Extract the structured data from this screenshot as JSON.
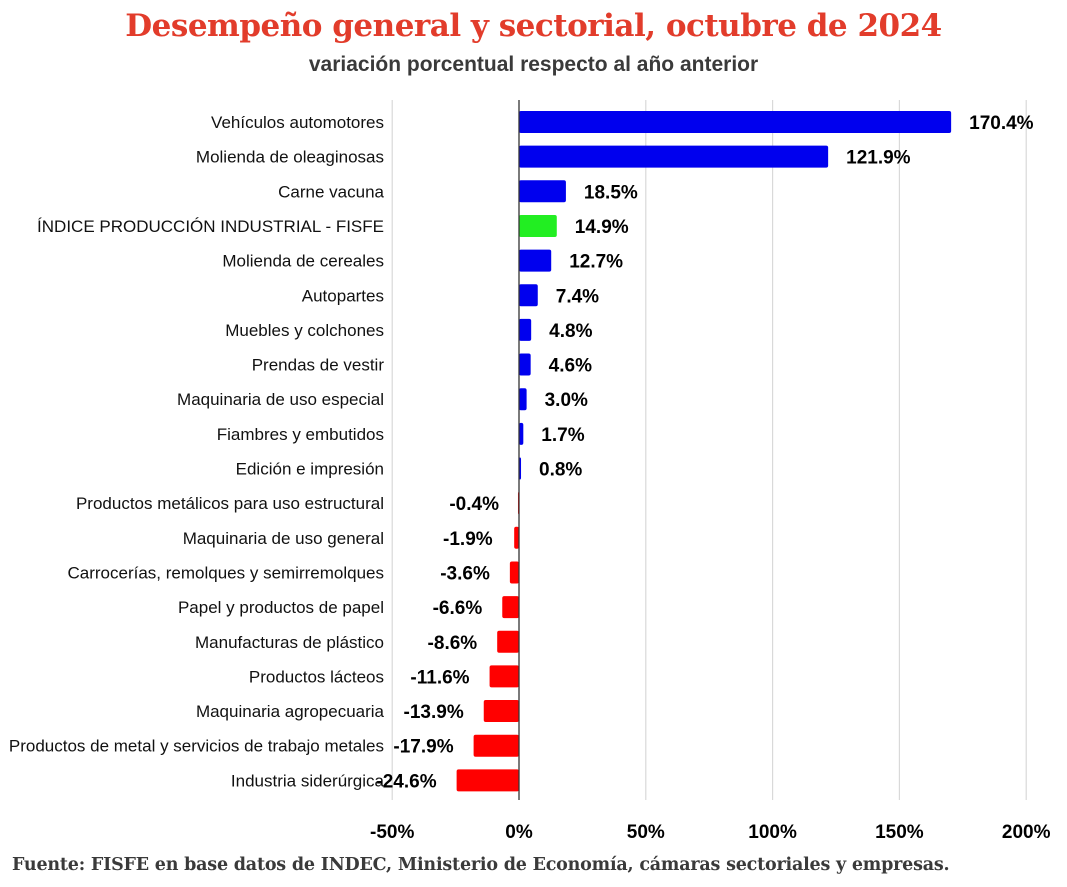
{
  "chart_data": {
    "type": "bar",
    "orientation": "horizontal",
    "title": "Desempeño general y sectorial, octubre de 2024",
    "subtitle": "variación porcentual respecto al año anterior",
    "xlabel": "",
    "ylabel": "",
    "xlim": [
      -50,
      200
    ],
    "x_ticks": [
      -50,
      0,
      50,
      100,
      150,
      200
    ],
    "x_tick_labels": [
      "-50%",
      "0%",
      "50%",
      "100%",
      "150%",
      "200%"
    ],
    "grid": true,
    "legend": "none",
    "colors": {
      "positive": "#0000ee",
      "negative": "#ff0000",
      "index": "#22ee22",
      "grid": "#d9d9d9",
      "zero_axis": "#333333"
    },
    "categories": [
      "Vehículos automotores",
      "Molienda de oleaginosas",
      "Carne vacuna",
      "ÍNDICE PRODUCCIÓN INDUSTRIAL - FISFE",
      "Molienda de cereales",
      "Autopartes",
      "Muebles y colchones",
      "Prendas de vestir",
      "Maquinaria de uso especial",
      "Fiambres y embutidos",
      "Edición e impresión",
      "Productos metálicos para uso estructural",
      "Maquinaria de uso general",
      "Carrocerías, remolques y semirremolques",
      "Papel y productos de papel",
      "Manufacturas de plástico",
      "Productos lácteos",
      "Maquinaria agropecuaria",
      "Productos de metal y servicios de trabajo metales",
      "Industria siderúrgica"
    ],
    "values": [
      170.4,
      121.9,
      18.5,
      14.9,
      12.7,
      7.4,
      4.8,
      4.6,
      3.0,
      1.7,
      0.8,
      -0.4,
      -1.9,
      -3.6,
      -6.6,
      -8.6,
      -11.6,
      -13.9,
      -17.9,
      -24.6
    ],
    "value_labels": [
      "170.4%",
      "121.9%",
      "18.5%",
      "14.9%",
      "12.7%",
      "7.4%",
      "4.8%",
      "4.6%",
      "3.0%",
      "1.7%",
      "0.8%",
      "-0.4%",
      "-1.9%",
      "-3.6%",
      "-6.6%",
      "-8.6%",
      "-11.6%",
      "-13.9%",
      "-17.9%",
      "-24.6%"
    ],
    "highlight_index": 3,
    "source": "Fuente: FISFE en base datos de INDEC, Ministerio de Economía, cámaras sectoriales y empresas."
  }
}
